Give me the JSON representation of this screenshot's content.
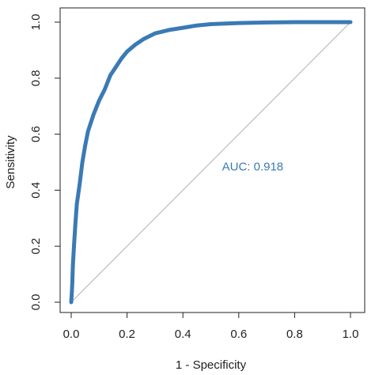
{
  "chart_data": {
    "type": "line",
    "xlabel": "1 - Specificity",
    "ylabel": "Sensitivity",
    "xlim": [
      0,
      1
    ],
    "ylim": [
      0,
      1
    ],
    "x_ticks": [
      "0.0",
      "0.2",
      "0.4",
      "0.6",
      "0.8",
      "1.0"
    ],
    "y_ticks": [
      "0.0",
      "0.2",
      "0.4",
      "0.6",
      "0.8",
      "1.0"
    ],
    "grid": false,
    "series": [
      {
        "color": "#3a7ab5",
        "points": [
          [
            0.0,
            0.0
          ],
          [
            0.002,
            0.03
          ],
          [
            0.004,
            0.07
          ],
          [
            0.006,
            0.13
          ],
          [
            0.01,
            0.2
          ],
          [
            0.015,
            0.28
          ],
          [
            0.02,
            0.35
          ],
          [
            0.03,
            0.42
          ],
          [
            0.04,
            0.5
          ],
          [
            0.05,
            0.56
          ],
          [
            0.06,
            0.61
          ],
          [
            0.08,
            0.67
          ],
          [
            0.1,
            0.72
          ],
          [
            0.12,
            0.76
          ],
          [
            0.14,
            0.81
          ],
          [
            0.16,
            0.84
          ],
          [
            0.18,
            0.87
          ],
          [
            0.2,
            0.895
          ],
          [
            0.23,
            0.92
          ],
          [
            0.26,
            0.94
          ],
          [
            0.3,
            0.96
          ],
          [
            0.35,
            0.972
          ],
          [
            0.4,
            0.98
          ],
          [
            0.45,
            0.988
          ],
          [
            0.5,
            0.993
          ],
          [
            0.6,
            0.997
          ],
          [
            0.7,
            0.999
          ],
          [
            0.8,
            1.0
          ],
          [
            0.9,
            1.0
          ],
          [
            1.0,
            1.0
          ]
        ]
      }
    ],
    "reference_line": {
      "points": [
        [
          0,
          0
        ],
        [
          1,
          1
        ]
      ],
      "color": "#b0b0b0"
    },
    "annotations": [
      {
        "text": "AUC: 0.918",
        "x": 0.54,
        "y": 0.47,
        "color": "#3a7ab5"
      }
    ]
  }
}
